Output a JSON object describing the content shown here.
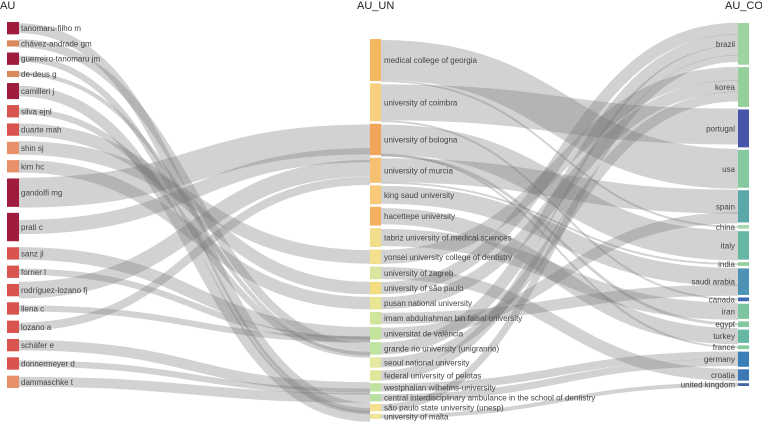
{
  "columns": [
    {
      "key": "au",
      "title": "AU"
    },
    {
      "key": "un",
      "title": "AU_UN"
    },
    {
      "key": "co",
      "title": "AU_CO"
    }
  ],
  "nodes": {
    "au": [
      {
        "label": "tanomaru-filho m",
        "color": "#a01c3c",
        "w": 1
      },
      {
        "label": "chávez-andrade gm",
        "color": "#d98a5a",
        "w": 0.5
      },
      {
        "label": "guerreiro-tanomaru jm",
        "color": "#a01c3c",
        "w": 1
      },
      {
        "label": "de-deus g",
        "color": "#d98a5a",
        "w": 0.5
      },
      {
        "label": "camilleri j",
        "color": "#a01c3c",
        "w": 1.3
      },
      {
        "label": "silva ejnl",
        "color": "#d9534f",
        "w": 1
      },
      {
        "label": "duarte mah",
        "color": "#d9534f",
        "w": 1
      },
      {
        "label": "shin sj",
        "color": "#e8906a",
        "w": 1
      },
      {
        "label": "kim hc",
        "color": "#e8906a",
        "w": 1
      },
      {
        "label": "gandolfi mg",
        "color": "#a01c3c",
        "w": 2.3
      },
      {
        "label": "prati c",
        "color": "#a01c3c",
        "w": 2.3
      },
      {
        "label": "sanz jl",
        "color": "#d9534f",
        "w": 1
      },
      {
        "label": "forner l",
        "color": "#d9534f",
        "w": 1
      },
      {
        "label": "rodríguez-lozano fj",
        "color": "#d9534f",
        "w": 1
      },
      {
        "label": "llena c",
        "color": "#d9534f",
        "w": 1
      },
      {
        "label": "lozano a",
        "color": "#d9534f",
        "w": 1
      },
      {
        "label": "schäfer e",
        "color": "#d9534f",
        "w": 1
      },
      {
        "label": "donnermeyer d",
        "color": "#d9534f",
        "w": 1
      },
      {
        "label": "dammaschke t",
        "color": "#e8906a",
        "w": 1
      }
    ],
    "un": [
      {
        "label": "medical college of georgia",
        "color": "#f4b860",
        "w": 2
      },
      {
        "label": "university of coimbra",
        "color": "#f7cf80",
        "w": 1.8
      },
      {
        "label": "university of bologna",
        "color": "#f2a55a",
        "w": 1.5
      },
      {
        "label": "university of murcia",
        "color": "#f5c070",
        "w": 1.2
      },
      {
        "label": "king saud university",
        "color": "#f7c979",
        "w": 0.9
      },
      {
        "label": "hacettepe university",
        "color": "#f4b060",
        "w": 0.9
      },
      {
        "label": "tabriz university of medical sciences",
        "color": "#f2de8a",
        "w": 0.9
      },
      {
        "label": "yonsei university college of dentistry",
        "color": "#f5e090",
        "w": 0.7
      },
      {
        "label": "university of zagreb",
        "color": "#d8e6a0",
        "w": 0.6
      },
      {
        "label": "university of são paulo",
        "color": "#f3dd80",
        "w": 0.6
      },
      {
        "label": "pusan national university",
        "color": "#e8e690",
        "w": 0.6
      },
      {
        "label": "imam abdulrahman bin faisal university",
        "color": "#d0e69a",
        "w": 0.6
      },
      {
        "label": "universitat de valència",
        "color": "#c4e39a",
        "w": 0.6
      },
      {
        "label": "grande rio university (unigranrio)",
        "color": "#bfe3a0",
        "w": 0.6
      },
      {
        "label": "seoul national university",
        "color": "#e6eaa0",
        "w": 0.5
      },
      {
        "label": "federal university of pelotas",
        "color": "#e0e69a",
        "w": 0.5
      },
      {
        "label": "westphalian wilhelms-university",
        "color": "#c0e2a0",
        "w": 0.4
      },
      {
        "label": "central interdisciplinary ambulance in the school of dentistry",
        "color": "#b8dfa0",
        "w": 0.35
      },
      {
        "label": "são paulo state university (unesp)",
        "color": "#f5e090",
        "w": 0.35
      },
      {
        "label": "university of malta",
        "color": "#f0e69a",
        "w": 0.25
      }
    ],
    "co": [
      {
        "label": "brazil",
        "color": "#9cd3a0",
        "w": 2.2
      },
      {
        "label": "korea",
        "color": "#94cf9c",
        "w": 2.1
      },
      {
        "label": "portugal",
        "color": "#4656a8",
        "w": 2.0
      },
      {
        "label": "usa",
        "color": "#86c9a0",
        "w": 2.0
      },
      {
        "label": "spain",
        "color": "#5aa9a8",
        "w": 1.7
      },
      {
        "label": "china",
        "color": "#a8d8b0",
        "w": 0.2
      },
      {
        "label": "italy",
        "color": "#66b8a4",
        "w": 1.5
      },
      {
        "label": "india",
        "color": "#94cfa0",
        "w": 0.2
      },
      {
        "label": "saudi arabia",
        "color": "#4d93b5",
        "w": 1.4
      },
      {
        "label": "canada",
        "color": "#3e6cb0",
        "w": 0.2
      },
      {
        "label": "iran",
        "color": "#7cc4a0",
        "w": 0.8
      },
      {
        "label": "egypt",
        "color": "#84c8a0",
        "w": 0.3
      },
      {
        "label": "turkey",
        "color": "#66b8a4",
        "w": 0.7
      },
      {
        "label": "france",
        "color": "#86caa0",
        "w": 0.2
      },
      {
        "label": "germany",
        "color": "#3b7fb8",
        "w": 0.8
      },
      {
        "label": "croatia",
        "color": "#3b78b5",
        "w": 0.6
      },
      {
        "label": "united kingdom",
        "color": "#4466a8",
        "w": 0.15
      }
    ]
  },
  "links_au_un": [
    [
      0,
      18,
      1
    ],
    [
      1,
      13,
      0.5
    ],
    [
      2,
      18,
      1
    ],
    [
      3,
      13,
      0.5
    ],
    [
      4,
      19,
      1.3
    ],
    [
      5,
      13,
      1
    ],
    [
      6,
      9,
      1
    ],
    [
      7,
      7,
      1
    ],
    [
      8,
      10,
      1
    ],
    [
      9,
      2,
      2.3
    ],
    [
      10,
      2,
      2.3
    ],
    [
      11,
      12,
      1
    ],
    [
      12,
      12,
      1
    ],
    [
      13,
      3,
      1
    ],
    [
      14,
      12,
      1
    ],
    [
      15,
      3,
      1
    ],
    [
      16,
      16,
      1
    ],
    [
      17,
      16,
      1
    ],
    [
      18,
      17,
      1
    ]
  ],
  "links_un_co": [
    [
      0,
      3,
      2
    ],
    [
      1,
      2,
      1.8
    ],
    [
      2,
      6,
      1.5
    ],
    [
      3,
      4,
      1.2
    ],
    [
      4,
      8,
      0.9
    ],
    [
      5,
      12,
      0.9
    ],
    [
      6,
      10,
      0.9
    ],
    [
      7,
      1,
      0.7
    ],
    [
      8,
      15,
      0.6
    ],
    [
      9,
      0,
      0.6
    ],
    [
      10,
      1,
      0.6
    ],
    [
      11,
      8,
      0.6
    ],
    [
      12,
      4,
      0.6
    ],
    [
      13,
      0,
      0.6
    ],
    [
      14,
      1,
      0.5
    ],
    [
      15,
      0,
      0.5
    ],
    [
      16,
      14,
      0.4
    ],
    [
      17,
      14,
      0.35
    ],
    [
      18,
      0,
      0.35
    ],
    [
      19,
      16,
      0.25
    ],
    [
      0,
      5,
      0.2
    ],
    [
      2,
      11,
      0.3
    ],
    [
      3,
      7,
      0.2
    ],
    [
      1,
      9,
      0.2
    ],
    [
      2,
      13,
      0.2
    ]
  ]
}
